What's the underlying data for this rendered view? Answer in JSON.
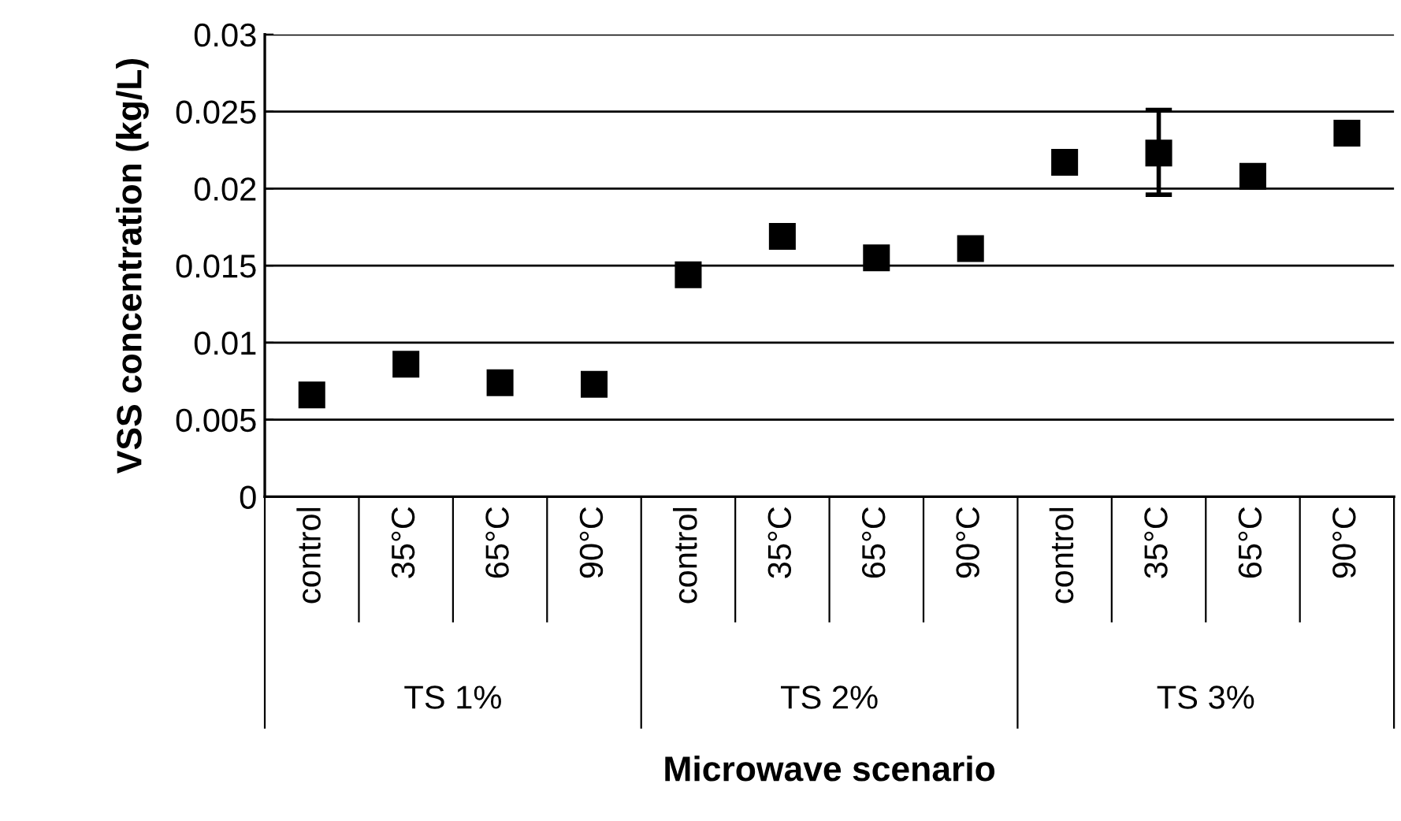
{
  "chart_data": {
    "type": "scatter",
    "xlabel": "Microwave scenario",
    "ylabel": "VSS concentration (kg/L)",
    "categories": [
      "control",
      "35°C",
      "65°C",
      "90°C",
      "control",
      "35°C",
      "65°C",
      "90°C",
      "control",
      "35°C",
      "65°C",
      "90°C"
    ],
    "series": [
      {
        "color": "#000000",
        "marker": "square",
        "values": [
          0.0066,
          0.0086,
          0.0074,
          0.0073,
          0.0144,
          0.0169,
          0.0155,
          0.0161,
          0.0217,
          0.0223,
          0.0208,
          0.0236
        ],
        "errors": [
          null,
          null,
          null,
          null,
          null,
          null,
          null,
          null,
          null,
          [
            0.0196,
            0.0251
          ],
          null,
          null
        ]
      }
    ],
    "annotations": [
      "TS 1%",
      "TS 2%",
      "TS 3%"
    ],
    "ylim": [
      0,
      0.03
    ],
    "yticks": [
      0,
      0.005,
      0.01,
      0.015,
      0.02,
      0.025,
      0.03
    ],
    "grid": "y"
  }
}
